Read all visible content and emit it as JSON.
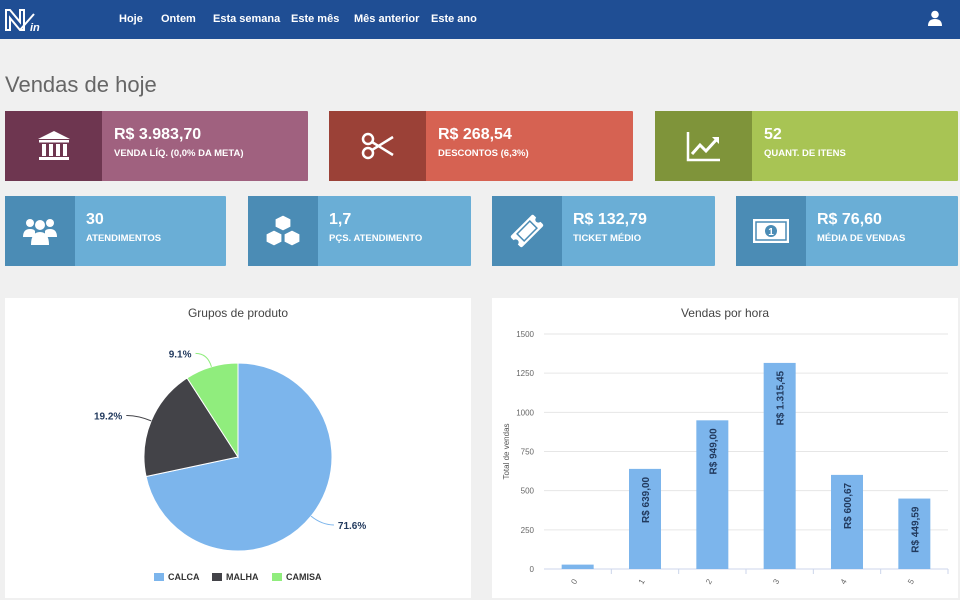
{
  "nav": {
    "items": [
      "Hoje",
      "Ontem",
      "Esta semana",
      "Este mês",
      "Mês anterior",
      "Este ano"
    ]
  },
  "page": {
    "title": "Vendas de hoje"
  },
  "cards": {
    "venda": {
      "value": "R$ 3.983,70",
      "label": "VENDA LÍQ. (0,0% DA META)"
    },
    "descontos": {
      "value": "R$ 268,54",
      "label": "DESCONTOS (6,3%)"
    },
    "itens": {
      "value": "52",
      "label": "QUANT. DE ITENS"
    },
    "atendimentos": {
      "value": "30",
      "label": "ATENDIMENTOS"
    },
    "pcs": {
      "value": "1,7",
      "label": "PÇS. ATENDIMENTO"
    },
    "ticket": {
      "value": "R$ 132,79",
      "label": "TICKET MÉDIO"
    },
    "media": {
      "value": "R$ 76,60",
      "label": "MÉDIA DE VENDAS"
    }
  },
  "colors": {
    "nav": "#1f4e94",
    "venda": "#a0617f",
    "venda_dark": "#6e3650",
    "descontos": "#d66252",
    "descontos_dark": "#9b4137",
    "itens": "#a8c454",
    "itens_dark": "#7f943a",
    "blue": "#6aaed6",
    "blue_dark": "#4b8cb5"
  },
  "chart_data": [
    {
      "type": "pie",
      "title": "Grupos de produto",
      "labels": [
        "CALCA",
        "MALHA",
        "CAMISA"
      ],
      "values": [
        71.6,
        19.2,
        9.1
      ],
      "value_labels": [
        "71.6%",
        "19.2%",
        "9.1%"
      ],
      "colors": [
        "#7cb5ec",
        "#434348",
        "#90ed7d"
      ],
      "legend": "bottom"
    },
    {
      "type": "bar",
      "title": "Vendas por hora",
      "ylabel": "Total de vendas",
      "categories": [
        "0",
        "1",
        "2",
        "3",
        "4",
        "5"
      ],
      "values": [
        28,
        639.0,
        949.0,
        1315.45,
        600.67,
        449.59
      ],
      "data_labels": [
        "",
        "R$ 639,00",
        "R$ 949,00",
        "R$ 1.315,45",
        "R$ 600,67",
        "R$ 449,59"
      ],
      "y_ticks": [
        "0",
        "250",
        "500",
        "750",
        "1000",
        "1250",
        "1500"
      ],
      "ylim": [
        0,
        1500
      ],
      "color": "#7cb5ec"
    }
  ]
}
